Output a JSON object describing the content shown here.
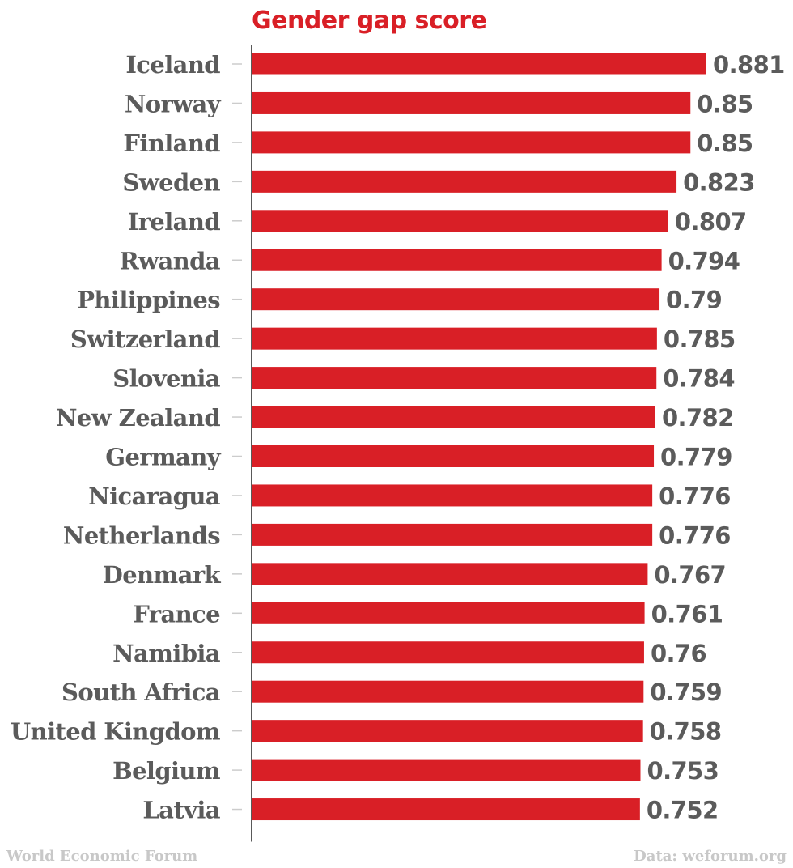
{
  "chart_data": {
    "type": "bar",
    "orientation": "horizontal",
    "title": "Gender gap score",
    "xlabel": "",
    "ylabel": "",
    "categories": [
      "Iceland",
      "Norway",
      "Finland",
      "Sweden",
      "Ireland",
      "Rwanda",
      "Philippines",
      "Switzerland",
      "Slovenia",
      "New Zealand",
      "Germany",
      "Nicaragua",
      "Netherlands",
      "Denmark",
      "France",
      "Namibia",
      "South Africa",
      "United Kingdom",
      "Belgium",
      "Latvia"
    ],
    "values": [
      0.881,
      0.85,
      0.85,
      0.823,
      0.807,
      0.794,
      0.79,
      0.785,
      0.784,
      0.782,
      0.779,
      0.776,
      0.776,
      0.767,
      0.761,
      0.76,
      0.759,
      0.758,
      0.753,
      0.752
    ],
    "value_labels": [
      "0.881",
      "0.85",
      "0.85",
      "0.823",
      "0.807",
      "0.794",
      "0.79",
      "0.785",
      "0.784",
      "0.782",
      "0.779",
      "0.776",
      "0.776",
      "0.767",
      "0.761",
      "0.76",
      "0.759",
      "0.758",
      "0.753",
      "0.752"
    ],
    "xlim": [
      0,
      0.881
    ],
    "grid": false,
    "legend": "none",
    "colors": {
      "bar": "#d91f26",
      "label": "#5b5b5b",
      "title": "#d91f26",
      "axis": "#222222",
      "tick": "#cccccc"
    }
  },
  "footer": {
    "source_left": "World Economic Forum",
    "source_right": "Data: weforum.org"
  }
}
